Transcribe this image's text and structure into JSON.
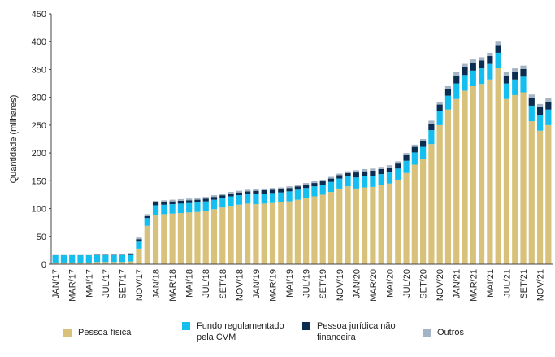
{
  "chart_data": {
    "type": "stacked_bar",
    "y_label": "Quantidade (milhares)",
    "categories": [
      "JAN/17",
      null,
      "MAR/17",
      null,
      "MAI/17",
      null,
      "JUL/17",
      null,
      "SET/17",
      null,
      "NOV/17",
      null,
      "JAN/18",
      null,
      "MAR/18",
      null,
      "MAI/18",
      null,
      "JUL/18",
      null,
      "SET/18",
      null,
      "NOV/18",
      null,
      "JAN/19",
      null,
      "MAR/19",
      null,
      "MAI/19",
      null,
      "JUL/19",
      null,
      "SET/19",
      null,
      "NOV/19",
      null,
      "JAN/20",
      null,
      "MAR/20",
      null,
      "MAI/20",
      null,
      "JUL/20",
      null,
      "SET/20",
      null,
      "NOV/20",
      null,
      "JAN/21",
      null,
      "MAR/21",
      null,
      "MAI/21",
      null,
      "JUL/21",
      null,
      "SET/21",
      null,
      "NOV/21",
      null
    ],
    "series": [
      {
        "name": "Pessoa física",
        "color": "#d8c27b",
        "values": [
          3,
          3,
          3,
          3,
          3,
          4,
          4,
          4,
          4,
          5,
          28,
          69,
          89,
          90,
          91,
          92,
          93,
          94,
          96,
          99,
          102,
          105,
          107,
          109,
          108,
          109,
          110,
          111,
          113,
          116,
          119,
          122,
          125,
          130,
          136,
          140,
          136,
          138,
          139,
          142,
          145,
          152,
          164,
          179,
          189,
          216,
          250,
          278,
          297,
          312,
          320,
          324,
          332,
          352,
          297,
          304,
          309,
          257,
          240,
          250
        ]
      },
      {
        "name": "Fundo regulamentado pela CVM",
        "color": "#14bff0",
        "values": [
          13,
          13,
          13,
          13,
          13,
          13,
          13,
          13,
          13,
          13,
          14,
          14,
          17,
          17,
          17,
          17,
          17,
          17,
          17,
          17,
          17,
          17,
          17,
          17,
          18,
          18,
          18,
          18,
          18,
          18,
          18,
          18,
          18,
          18,
          18,
          18,
          20,
          20,
          20,
          20,
          20,
          20,
          22,
          22,
          22,
          25,
          25,
          25,
          28,
          28,
          28,
          28,
          28,
          28,
          28,
          28,
          28,
          28,
          28,
          28
        ]
      },
      {
        "name": "Pessoa jurídica não financeira",
        "color": "#0b2d52",
        "values": [
          1,
          1,
          1,
          1,
          1,
          1,
          1,
          1,
          1,
          1,
          3,
          4,
          5,
          5,
          5,
          5,
          5,
          5,
          5,
          5,
          5,
          5,
          5,
          5,
          6,
          6,
          6,
          6,
          6,
          6,
          6,
          6,
          6,
          6,
          6,
          6,
          9,
          9,
          9,
          9,
          9,
          9,
          10,
          10,
          10,
          12,
          12,
          12,
          14,
          14,
          14,
          14,
          14,
          14,
          14,
          14,
          14,
          14,
          14,
          14
        ]
      },
      {
        "name": "Outros",
        "color": "#a5b4c4",
        "values": [
          1,
          1,
          1,
          1,
          1,
          1,
          1,
          1,
          1,
          1,
          3,
          3,
          3,
          3,
          3,
          3,
          3,
          3,
          3,
          3,
          3,
          3,
          3,
          3,
          3,
          3,
          3,
          3,
          3,
          3,
          3,
          3,
          3,
          3,
          3,
          3,
          4,
          4,
          4,
          4,
          4,
          4,
          4,
          4,
          4,
          5,
          5,
          5,
          6,
          6,
          6,
          6,
          6,
          6,
          6,
          6,
          6,
          6,
          6,
          6
        ]
      }
    ],
    "ylim": [
      0,
      450
    ],
    "yticks": [
      0,
      50,
      100,
      150,
      200,
      250,
      300,
      350,
      400,
      450
    ],
    "grid": false,
    "legend": "bottom"
  }
}
